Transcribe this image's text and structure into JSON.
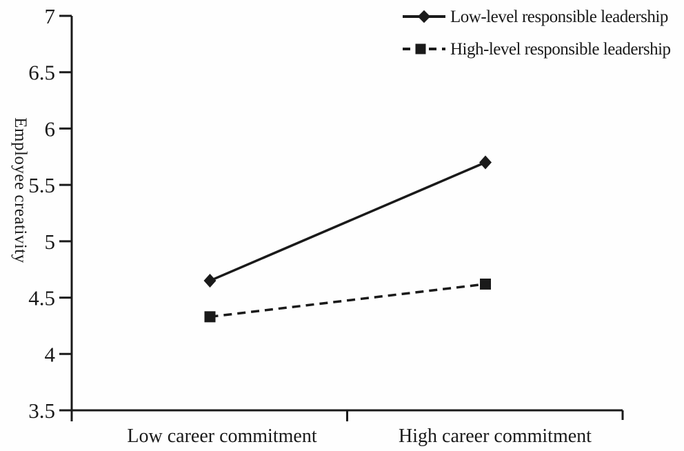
{
  "chart_data": {
    "type": "line",
    "title": "",
    "xlabel": "",
    "ylabel": "Employee creativity",
    "categories": [
      "Low career commitment",
      "High career commitment"
    ],
    "series": [
      {
        "name": "Low-level responsible leadership",
        "values": [
          4.65,
          5.7
        ],
        "line_style": "solid",
        "marker": "diamond",
        "color": "#1a1a1a"
      },
      {
        "name": "High-level responsible leadership",
        "values": [
          4.33,
          4.62
        ],
        "line_style": "dashed",
        "marker": "square",
        "color": "#1a1a1a"
      }
    ],
    "ylim": [
      3.5,
      7
    ],
    "ytick_step": 0.5,
    "yticks": [
      3.5,
      4,
      4.5,
      5,
      5.5,
      6,
      6.5,
      7
    ],
    "ytick_labels": [
      "3.5",
      "4",
      "4.5",
      "5",
      "5.5",
      "6",
      "6.5",
      "7"
    ],
    "grid": false,
    "legend_position": "top-right",
    "axis_color": "#1a1a1a",
    "background_color": "#ffffff"
  }
}
